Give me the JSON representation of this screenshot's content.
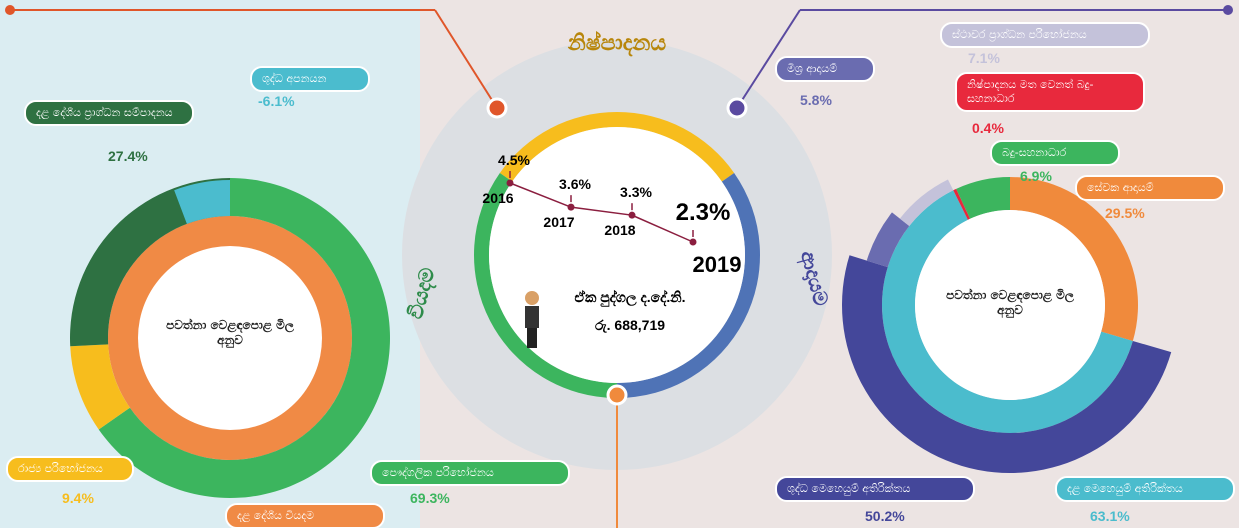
{
  "center": {
    "ring_labels": [
      "නිෂ්පාදනය",
      "වියදම",
      "ආදායම"
    ],
    "gdp_label": "ඒක පුද්ගල ද.දේ.නි.",
    "gdp_value": "රු. 688,719"
  },
  "chart_data": [
    {
      "type": "donut",
      "title": "පවත්නා වෙළඳපොළ මිල අනුව",
      "total_label": "දළ දේශීය වියදම",
      "total_color": "#f08a45",
      "categories": [
        "පෞද්ගලික පරිභෝජනය",
        "රාජ්‍ය පරිභෝජනය",
        "දළ දේශීය ප්‍රාග්ධන සම්පාදනය",
        "ශුද්ධ අපනයන"
      ],
      "values": [
        69.3,
        9.4,
        27.4,
        -6.1
      ],
      "value_labels": [
        "69.3%",
        "9.4%",
        "27.4%",
        "-6.1%"
      ],
      "colors": [
        "#3cb55e",
        "#f7bd1d",
        "#2e7142",
        "#4bbcce"
      ]
    },
    {
      "type": "line",
      "categories": [
        "2016",
        "2017",
        "2018",
        "2019"
      ],
      "values": [
        4.5,
        3.6,
        3.3,
        2.3
      ],
      "value_labels": [
        "4.5%",
        "3.6%",
        "3.3%",
        "2.3%"
      ],
      "color": "#8b1e3f"
    },
    {
      "type": "donut",
      "title": "පවත්නා වෙළඳපොළ මිල අනුව",
      "categories": [
        "සේවක ආදායම්",
        "දළ මෙහෙයුම් අතිරික්තය",
        "නිෂ්පාදනය මත වෙනත් බදු-සහනාධාර",
        "බදු-සහනාධාර"
      ],
      "values": [
        29.5,
        63.1,
        0.4,
        6.9
      ],
      "value_labels": [
        "29.5%",
        "63.1%",
        "0.4%",
        "6.9%"
      ],
      "colors": [
        "#f08a3c",
        "#4bbccd",
        "#e8293d",
        "#3cb55e"
      ],
      "breakdown": {
        "categories": [
          "ශුද්ධ මෙහෙයුම් අතිරික්තය",
          "මිශ්‍ර ආදායම්",
          "ස්ථාවර ප්‍රාග්ධන පරිභෝජනය"
        ],
        "values": [
          50.2,
          5.8,
          7.1
        ],
        "value_labels": [
          "50.2%",
          "5.8%",
          "7.1%"
        ],
        "colors": [
          "#44479a",
          "#6a6cb0",
          "#c4c2da"
        ]
      }
    }
  ]
}
